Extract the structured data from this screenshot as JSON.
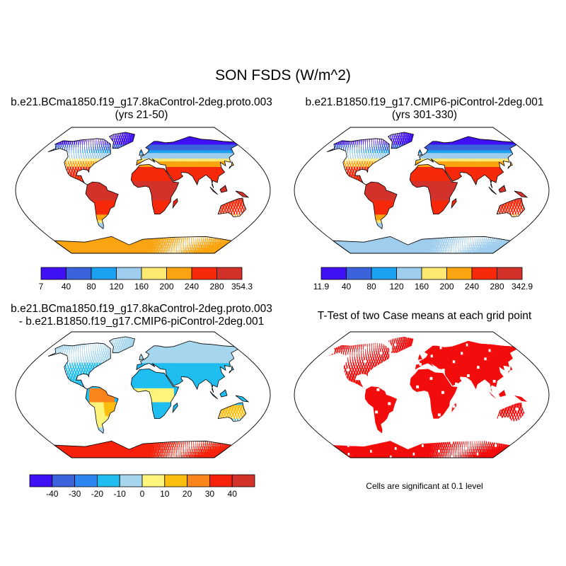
{
  "title": "SON FSDS (W/m^2)",
  "panels": [
    {
      "id": "case1",
      "title_line1": "b.e21.BCma1850.f19_g17.8kaControl-2deg.proto.003",
      "title_line2": "(yrs 21-50)",
      "colorbar": {
        "colors": [
          "#3f10f5",
          "#3c63db",
          "#1aa1ef",
          "#9ecded",
          "#fde872",
          "#f9a410",
          "#f7290b",
          "#d2322a"
        ],
        "labels": [
          "7",
          "40",
          "80",
          "120",
          "160",
          "200",
          "240",
          "280",
          "354.3"
        ]
      }
    },
    {
      "id": "case2",
      "title_line1": "b.e21.B1850.f19_g17.CMIP6-piControl-2deg.001",
      "title_line2": "(yrs 301-330)",
      "colorbar": {
        "colors": [
          "#3f10f5",
          "#3c63db",
          "#1aa1ef",
          "#9ecded",
          "#fde872",
          "#f9a410",
          "#f7290b",
          "#d2322a"
        ],
        "labels": [
          "11.9",
          "40",
          "80",
          "120",
          "160",
          "200",
          "240",
          "280",
          "342.9"
        ]
      }
    },
    {
      "id": "diff",
      "title_line1": "b.e21.BCma1850.f19_g17.8kaControl-2deg.proto.003",
      "title_line2": "- b.e21.B1850.f19_g17.CMIP6-piControl-2deg.001",
      "colorbar": {
        "colors": [
          "#3f10f5",
          "#3c63db",
          "#2b86f2",
          "#1fbdf0",
          "#a6d6ee",
          "#fef47b",
          "#fbbe0e",
          "#f8841a",
          "#f7200a",
          "#d2322a"
        ],
        "labels": [
          "-40",
          "-30",
          "-20",
          "-10",
          "0",
          "10",
          "20",
          "30",
          "40"
        ]
      }
    },
    {
      "id": "ttest",
      "title_line1": "T-Test of two Case means at each grid point",
      "note": "Cells are significant at 0.1 level"
    }
  ]
}
